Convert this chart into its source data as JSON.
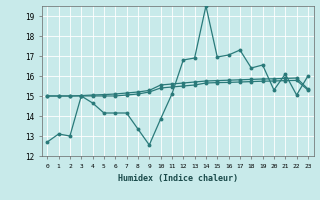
{
  "xlabel": "Humidex (Indice chaleur)",
  "bg_color": "#c8eaea",
  "line_color": "#2a7a7a",
  "xlim": [
    -0.5,
    23.5
  ],
  "ylim": [
    12,
    19.5
  ],
  "yticks": [
    12,
    13,
    14,
    15,
    16,
    17,
    18,
    19
  ],
  "xticks": [
    0,
    1,
    2,
    3,
    4,
    5,
    6,
    7,
    8,
    9,
    10,
    11,
    12,
    13,
    14,
    15,
    16,
    17,
    18,
    19,
    20,
    21,
    22,
    23
  ],
  "line1_x": [
    0,
    1,
    2,
    3,
    4,
    5,
    6,
    7,
    8,
    9,
    10,
    11,
    12,
    13,
    14,
    15,
    16,
    17,
    18,
    19,
    20,
    21,
    22,
    23
  ],
  "line1_y": [
    12.7,
    13.1,
    13.0,
    15.0,
    14.65,
    14.15,
    14.15,
    14.15,
    13.35,
    12.55,
    13.85,
    15.1,
    16.8,
    16.9,
    19.5,
    16.95,
    17.05,
    17.3,
    16.4,
    16.55,
    15.3,
    16.1,
    15.05,
    16.0
  ],
  "line2_x": [
    0,
    1,
    2,
    3,
    4,
    5,
    6,
    7,
    8,
    9,
    10,
    11,
    12,
    13,
    14,
    15,
    16,
    17,
    18,
    19,
    20,
    21,
    22,
    23
  ],
  "line2_y": [
    15.0,
    15.0,
    15.0,
    15.0,
    15.0,
    15.0,
    15.0,
    15.05,
    15.1,
    15.2,
    15.4,
    15.45,
    15.5,
    15.55,
    15.65,
    15.67,
    15.68,
    15.7,
    15.72,
    15.74,
    15.75,
    15.77,
    15.78,
    15.3
  ],
  "line3_x": [
    0,
    1,
    2,
    3,
    4,
    5,
    6,
    7,
    8,
    9,
    10,
    11,
    12,
    13,
    14,
    15,
    16,
    17,
    18,
    19,
    20,
    21,
    22,
    23
  ],
  "line3_y": [
    15.0,
    15.0,
    15.0,
    15.02,
    15.05,
    15.07,
    15.1,
    15.15,
    15.2,
    15.28,
    15.55,
    15.6,
    15.65,
    15.7,
    15.75,
    15.77,
    15.79,
    15.81,
    15.83,
    15.85,
    15.86,
    15.88,
    15.9,
    15.35
  ]
}
